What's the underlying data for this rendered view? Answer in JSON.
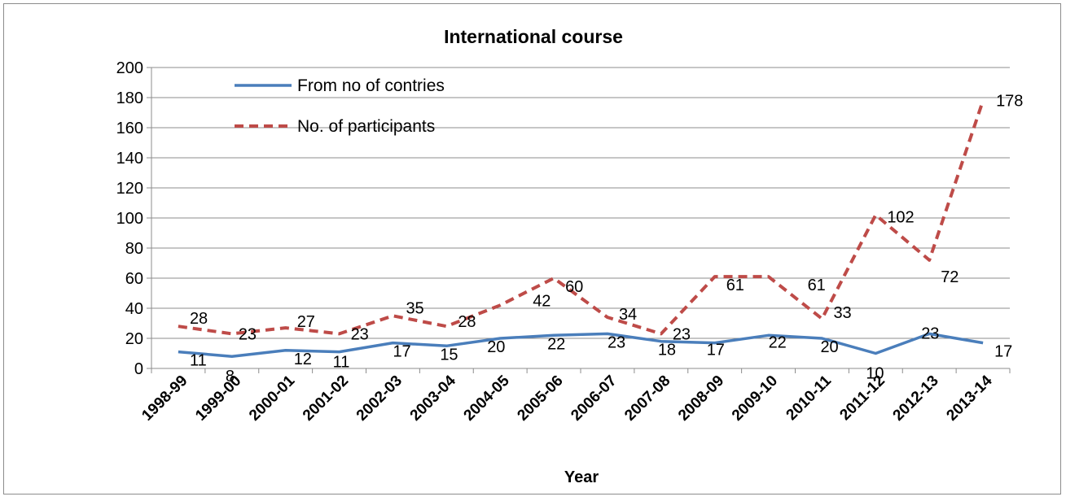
{
  "chart_data": {
    "type": "line",
    "title": "International course",
    "xlabel": "Year",
    "ylabel": "",
    "ylim": [
      0,
      200
    ],
    "yticks": [
      0,
      20,
      40,
      60,
      80,
      100,
      120,
      140,
      160,
      180,
      200
    ],
    "grid": true,
    "legend_position": "top-left",
    "categories": [
      "1998-99",
      "1999-00",
      "2000-01",
      "2001-02",
      "2002-03",
      "2003-04",
      "2004-05",
      "2005-06",
      "2006-07",
      "2007-08",
      "2008-09",
      "2009-10",
      "2010-11",
      "2011-12",
      "2012-13",
      "2013-14"
    ],
    "series": [
      {
        "name": "From no of contries",
        "color": "#4a7ebb",
        "style": "solid",
        "values": [
          11,
          8,
          12,
          11,
          17,
          15,
          20,
          22,
          23,
          18,
          17,
          22,
          20,
          10,
          23,
          17
        ]
      },
      {
        "name": "No. of participants",
        "color": "#be4b48",
        "style": "dashed",
        "values": [
          28,
          23,
          27,
          23,
          35,
          28,
          42,
          60,
          34,
          23,
          61,
          61,
          33,
          102,
          72,
          178
        ]
      }
    ]
  }
}
